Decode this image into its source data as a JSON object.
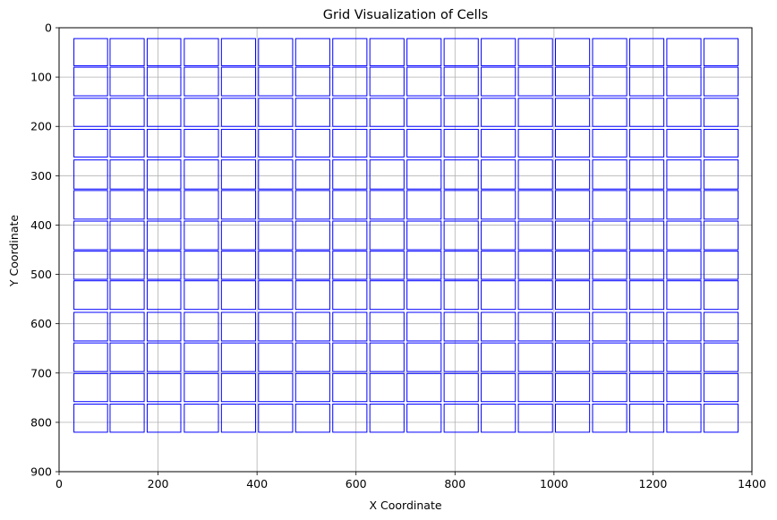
{
  "chart_data": {
    "type": "rectangle-grid",
    "title": "Grid Visualization of Cells",
    "xlabel": "X Coordinate",
    "ylabel": "Y Coordinate",
    "xlim": [
      0,
      1400
    ],
    "ylim": [
      900,
      0
    ],
    "y_inverted": true,
    "grid": true,
    "xticks": [
      0,
      200,
      400,
      600,
      800,
      1000,
      1200,
      1400
    ],
    "yticks": [
      0,
      100,
      200,
      300,
      400,
      500,
      600,
      700,
      800,
      900
    ],
    "cell_edge_color": "#0000ff",
    "grid_color": "#b0b0b0",
    "columns": [
      {
        "x0": 30,
        "x1": 98
      },
      {
        "x0": 103,
        "x1": 172
      },
      {
        "x0": 178,
        "x1": 246
      },
      {
        "x0": 253,
        "x1": 322
      },
      {
        "x0": 328,
        "x1": 397
      },
      {
        "x0": 403,
        "x1": 472
      },
      {
        "x0": 478,
        "x1": 547
      },
      {
        "x0": 553,
        "x1": 622
      },
      {
        "x0": 628,
        "x1": 697
      },
      {
        "x0": 703,
        "x1": 772
      },
      {
        "x0": 778,
        "x1": 847
      },
      {
        "x0": 853,
        "x1": 922
      },
      {
        "x0": 928,
        "x1": 997
      },
      {
        "x0": 1003,
        "x1": 1072
      },
      {
        "x0": 1078,
        "x1": 1147
      },
      {
        "x0": 1153,
        "x1": 1222
      },
      {
        "x0": 1228,
        "x1": 1297
      },
      {
        "x0": 1303,
        "x1": 1372
      }
    ],
    "rows": [
      {
        "y0": 22,
        "y1": 77
      },
      {
        "y0": 80,
        "y1": 138
      },
      {
        "y0": 143,
        "y1": 200
      },
      {
        "y0": 206,
        "y1": 262
      },
      {
        "y0": 268,
        "y1": 327
      },
      {
        "y0": 330,
        "y1": 388
      },
      {
        "y0": 392,
        "y1": 450
      },
      {
        "y0": 453,
        "y1": 510
      },
      {
        "y0": 513,
        "y1": 571
      },
      {
        "y0": 577,
        "y1": 635
      },
      {
        "y0": 639,
        "y1": 697
      },
      {
        "y0": 701,
        "y1": 758
      },
      {
        "y0": 763,
        "y1": 820
      }
    ]
  }
}
